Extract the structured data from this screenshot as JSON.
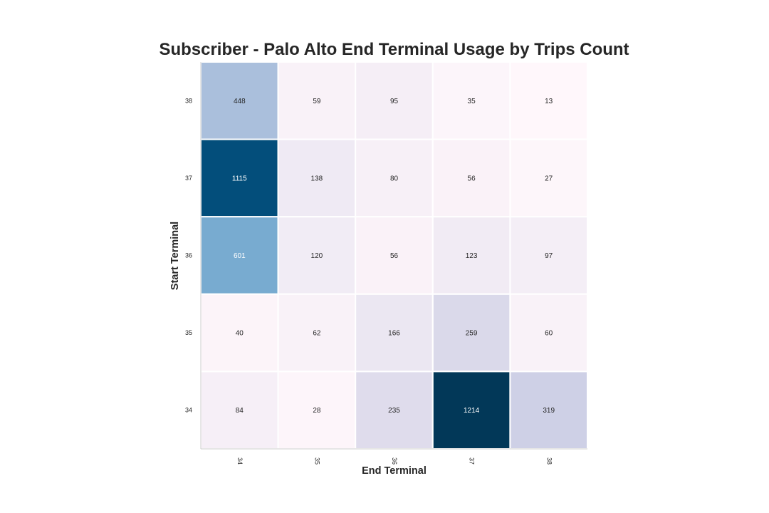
{
  "chart_data": {
    "type": "heatmap",
    "title": "Subscriber - Palo Alto End Terminal Usage by Trips Count",
    "xlabel": "End Terminal",
    "ylabel": "Start Terminal",
    "x_categories": [
      "34",
      "35",
      "36",
      "37",
      "38"
    ],
    "y_categories": [
      "38",
      "37",
      "36",
      "35",
      "34"
    ],
    "values": [
      [
        448,
        59,
        95,
        35,
        13
      ],
      [
        1115,
        138,
        80,
        56,
        27
      ],
      [
        601,
        120,
        56,
        123,
        97
      ],
      [
        40,
        62,
        166,
        259,
        60
      ],
      [
        84,
        28,
        235,
        1214,
        319
      ]
    ],
    "color_scale": {
      "min": 13,
      "max": 1214,
      "colormap": "PuBu",
      "low_color": "#f8f1f8",
      "high_color": "#023858"
    },
    "annotations": true
  }
}
